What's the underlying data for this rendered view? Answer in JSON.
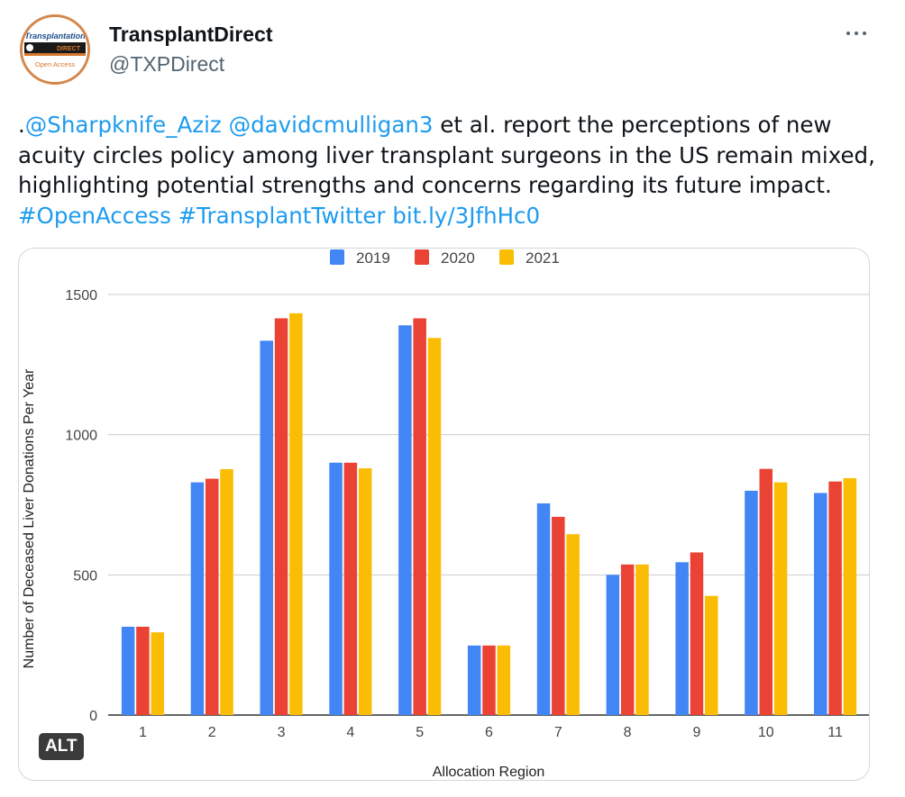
{
  "author": {
    "display_name": "TransplantDirect",
    "handle": "@TXPDirect",
    "avatar_icon": "transplantation-direct-logo",
    "avatar_text_top": "Transplantation",
    "avatar_text_mid": "DIRECT",
    "avatar_text_bottom": "Open Access"
  },
  "more_icon": "more-horizontal-icon",
  "tweet": {
    "prefix": ".",
    "mention1": "@Sharpknife_Aziz",
    "mention2": "@davidcmulligan3",
    "body": " et al. report the perceptions of new acuity circles policy among liver transplant surgeons in the US remain mixed, highlighting potential strengths and concerns regarding its future impact. ",
    "hashtag1": "#OpenAccess",
    "hashtag2": "#TransplantTwitter",
    "link": "bit.ly/3JfhHc0"
  },
  "alt_badge": "ALT",
  "chart_data": {
    "type": "bar",
    "title": "",
    "xlabel": "Allocation Region",
    "ylabel": "Number of Deceased Liver Donations Per Year",
    "ylim": [
      0,
      1500
    ],
    "yticks": [
      0,
      500,
      1000,
      1500
    ],
    "grid": true,
    "legend_position": "top-center",
    "categories": [
      "1",
      "2",
      "3",
      "4",
      "5",
      "6",
      "7",
      "8",
      "9",
      "10",
      "11"
    ],
    "series": [
      {
        "name": "2019",
        "color": "#4285f4",
        "values": [
          315,
          830,
          1335,
          900,
          1390,
          248,
          755,
          500,
          545,
          800,
          792
        ]
      },
      {
        "name": "2020",
        "color": "#ea4335",
        "values": [
          315,
          843,
          1415,
          900,
          1415,
          248,
          707,
          537,
          580,
          878,
          833
        ]
      },
      {
        "name": "2021",
        "color": "#fbbc04",
        "values": [
          295,
          877,
          1433,
          880,
          1345,
          248,
          645,
          537,
          425,
          830,
          845
        ]
      }
    ]
  }
}
